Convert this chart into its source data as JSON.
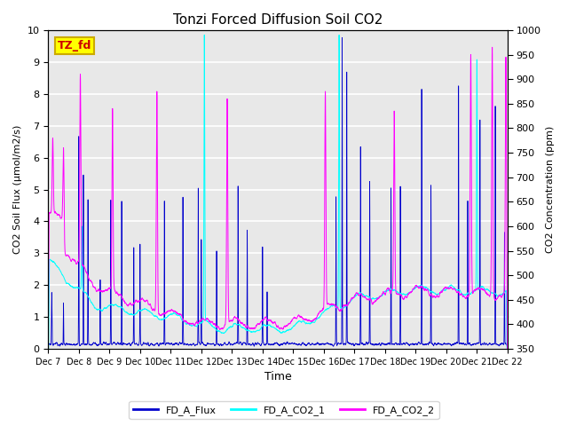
{
  "title": "Tonzi Forced Diffusion Soil CO2",
  "xlabel": "Time",
  "ylabel_left": "CO2 Soil Flux (μmol/m2/s)",
  "ylabel_right": "CO2 Concentration (ppm)",
  "ylim_left": [
    0.0,
    10.0
  ],
  "ylim_right": [
    350,
    1000
  ],
  "yticks_left": [
    0.0,
    1.0,
    2.0,
    3.0,
    4.0,
    5.0,
    6.0,
    7.0,
    8.0,
    9.0,
    10.0
  ],
  "yticks_right": [
    350,
    400,
    450,
    500,
    550,
    600,
    650,
    700,
    750,
    800,
    850,
    900,
    950,
    1000
  ],
  "xtick_labels": [
    "Dec 7",
    "Dec 8",
    "Dec 9",
    "Dec 10",
    "Dec 11",
    "Dec 12",
    "Dec 13",
    "Dec 14",
    "Dec 15",
    "Dec 16",
    "Dec 17",
    "Dec 18",
    "Dec 19",
    "Dec 20",
    "Dec 21",
    "Dec 22"
  ],
  "color_flux": "#0000CD",
  "color_co2_1": "#00FFFF",
  "color_co2_2": "#FF00FF",
  "label_flux": "FD_A_Flux",
  "label_co2_1": "FD_A_CO2_1",
  "label_co2_2": "FD_A_CO2_2",
  "box_label": "TZ_fd",
  "box_color": "#FFFF00",
  "box_text_color": "#CC0000",
  "box_edge_color": "#CCAA00",
  "background_color": "#E8E8E8",
  "grid_color": "#FFFFFF",
  "n_points": 3600,
  "seed": 7
}
